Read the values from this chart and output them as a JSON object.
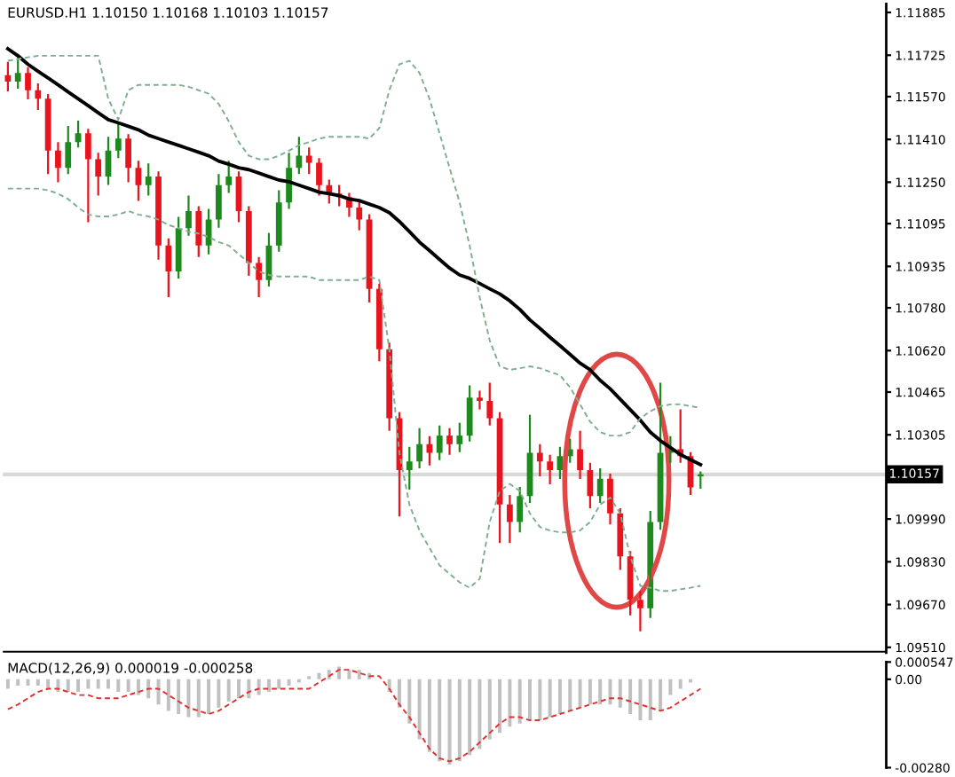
{
  "chart_data": [
    {
      "type": "candlestick",
      "title": "EURUSD.H1 1.10150 1.10168 1.10103 1.10157",
      "categories": [
        null,
        null,
        null,
        null,
        null,
        null,
        null,
        null,
        null,
        null,
        null,
        null,
        null,
        null,
        null,
        null,
        null,
        null,
        null,
        null,
        null,
        null,
        null,
        null,
        null,
        null,
        null,
        null,
        null,
        null,
        null,
        null,
        null,
        null,
        null,
        null,
        null,
        null,
        null,
        null,
        null,
        null,
        null,
        null,
        null,
        null,
        null,
        null,
        null,
        null,
        null,
        null,
        null,
        null,
        null,
        null,
        null,
        null,
        null,
        null,
        null,
        null,
        null,
        null,
        null,
        null,
        null,
        null,
        null,
        null,
        null,
        null,
        null,
        null,
        null,
        null,
        null,
        null,
        null,
        null,
        null,
        null,
        null,
        null,
        null,
        null,
        null,
        null
      ],
      "ohlc": [
        [
          1.1165,
          1.117,
          1.1159,
          1.11626
        ],
        [
          1.11626,
          1.1172,
          1.116,
          1.11659
        ],
        [
          1.11659,
          1.1168,
          1.1156,
          1.11594
        ],
        [
          1.11594,
          1.1162,
          1.1152,
          1.11562
        ],
        [
          1.11562,
          1.1158,
          1.1128,
          1.11368
        ],
        [
          1.11368,
          1.114,
          1.1125,
          1.11304
        ],
        [
          1.11304,
          1.1146,
          1.1128,
          1.114
        ],
        [
          1.114,
          1.1148,
          1.1138,
          1.11433
        ],
        [
          1.11433,
          1.1145,
          1.111,
          1.11336
        ],
        [
          1.11336,
          1.1136,
          1.112,
          1.11271
        ],
        [
          1.11271,
          1.1142,
          1.1124,
          1.11368
        ],
        [
          1.11368,
          1.1147,
          1.1134,
          1.11413
        ],
        [
          1.11413,
          1.1143,
          1.1125,
          1.11304
        ],
        [
          1.11304,
          1.1133,
          1.1118,
          1.11239
        ],
        [
          1.11239,
          1.1132,
          1.112,
          1.11271
        ],
        [
          1.11271,
          1.1129,
          1.1096,
          1.11013
        ],
        [
          1.11013,
          1.1104,
          1.1082,
          1.10916
        ],
        [
          1.10916,
          1.1112,
          1.1089,
          1.11078
        ],
        [
          1.11078,
          1.112,
          1.1105,
          1.11142
        ],
        [
          1.11142,
          1.1116,
          1.1097,
          1.11013
        ],
        [
          1.11013,
          1.1115,
          1.1098,
          1.1111
        ],
        [
          1.1111,
          1.1128,
          1.1108,
          1.11239
        ],
        [
          1.11239,
          1.1133,
          1.1121,
          1.11271
        ],
        [
          1.11271,
          1.1129,
          1.111,
          1.11142
        ],
        [
          1.11142,
          1.1116,
          1.109,
          1.10948
        ],
        [
          1.10948,
          1.1097,
          1.1082,
          1.10884
        ],
        [
          1.10884,
          1.1106,
          1.1086,
          1.11013
        ],
        [
          1.11013,
          1.1122,
          1.1099,
          1.11174
        ],
        [
          1.11174,
          1.1136,
          1.1115,
          1.11304
        ],
        [
          1.11304,
          1.1142,
          1.1128,
          1.11349
        ],
        [
          1.11349,
          1.1138,
          1.1128,
          1.11323
        ],
        [
          1.11323,
          1.1134,
          1.112,
          1.11239
        ],
        [
          1.11239,
          1.1126,
          1.1117,
          1.11207
        ],
        [
          1.11207,
          1.1124,
          1.1116,
          1.11194
        ],
        [
          1.11194,
          1.1121,
          1.1112,
          1.11155
        ],
        [
          1.11155,
          1.1118,
          1.1107,
          1.1111
        ],
        [
          1.1111,
          1.1113,
          1.108,
          1.10851
        ],
        [
          1.10851,
          1.1087,
          1.1058,
          1.10625
        ],
        [
          1.10625,
          1.1065,
          1.1032,
          1.10367
        ],
        [
          1.10367,
          1.1039,
          1.1,
          1.10173
        ],
        [
          1.10173,
          1.1026,
          1.101,
          1.10205
        ],
        [
          1.10205,
          1.1033,
          1.1018,
          1.1027
        ],
        [
          1.1027,
          1.103,
          1.1019,
          1.10238
        ],
        [
          1.10238,
          1.1034,
          1.1021,
          1.10302
        ],
        [
          1.10302,
          1.1033,
          1.1023,
          1.1027
        ],
        [
          1.1027,
          1.1035,
          1.1024,
          1.10302
        ],
        [
          1.10302,
          1.1049,
          1.1028,
          1.10444
        ],
        [
          1.10444,
          1.1047,
          1.104,
          1.10432
        ],
        [
          1.10432,
          1.105,
          1.1034,
          1.10367
        ],
        [
          1.10367,
          1.1039,
          1.099,
          1.10044
        ],
        [
          1.10044,
          1.1008,
          1.099,
          1.09979
        ],
        [
          1.09979,
          1.1011,
          1.0994,
          1.10076
        ],
        [
          1.10076,
          1.1038,
          1.1005,
          1.10238
        ],
        [
          1.10238,
          1.1027,
          1.1015,
          1.10205
        ],
        [
          1.10205,
          1.1023,
          1.1012,
          1.10173
        ],
        [
          1.10173,
          1.1026,
          1.1014,
          1.10225
        ],
        [
          1.10225,
          1.1029,
          1.102,
          1.10251
        ],
        [
          1.10251,
          1.1032,
          1.1014,
          1.10173
        ],
        [
          1.10173,
          1.102,
          1.1003,
          1.10076
        ],
        [
          1.10076,
          1.1018,
          1.1005,
          1.10141
        ],
        [
          1.10141,
          1.1016,
          1.0997,
          1.10011
        ],
        [
          1.10011,
          1.1003,
          1.098,
          1.0985
        ],
        [
          1.0985,
          1.0987,
          1.0963,
          1.09688
        ],
        [
          1.09688,
          1.0972,
          1.0957,
          1.09656
        ],
        [
          1.09656,
          1.1002,
          1.0962,
          1.09979
        ],
        [
          1.09979,
          1.105,
          1.0995,
          1.10238
        ],
        [
          1.10238,
          1.103,
          1.102,
          1.10251
        ],
        [
          1.10251,
          1.104,
          1.102,
          1.10225
        ],
        [
          1.10225,
          1.1024,
          1.1008,
          1.10108
        ],
        [
          1.1015,
          1.10168,
          1.10103,
          1.10157
        ],
        null,
        null,
        null,
        null,
        null,
        null,
        null,
        null,
        null,
        null,
        null,
        null,
        null,
        null,
        null,
        null,
        null,
        null
      ],
      "series": [
        {
          "type": "line",
          "color": "#000000",
          "line_style": "solid",
          "values": [
            1.11749,
            1.11723,
            1.11691,
            1.11665,
            1.1164,
            1.11614,
            1.11588,
            1.11562,
            1.11536,
            1.1151,
            1.11484,
            1.11472,
            1.11459,
            1.11446,
            1.11426,
            1.11413,
            1.114,
            1.11388,
            1.11375,
            1.11362,
            1.11349,
            1.11329,
            1.11317,
            1.11304,
            1.11297,
            1.11284,
            1.11271,
            1.11258,
            1.11252,
            1.11239,
            1.11226,
            1.11213,
            1.11207,
            1.112,
            1.11187,
            1.11181,
            1.11168,
            1.11155,
            1.11136,
            1.11103,
            1.11065,
            1.11026,
            1.10994,
            1.10961,
            1.10929,
            1.10903,
            1.1089,
            1.10871,
            1.10851,
            1.10832,
            1.10806,
            1.10774,
            1.10735,
            1.10703,
            1.1067,
            1.10638,
            1.10606,
            1.10573,
            1.10548,
            1.10509,
            1.10477,
            1.10438,
            1.10399,
            1.1036,
            1.10315,
            1.10283,
            1.10257,
            1.10231,
            1.10212,
            1.10193,
            null,
            null,
            null,
            null,
            null,
            null,
            null,
            null,
            null,
            null,
            null,
            null,
            null,
            null,
            null,
            null,
            null,
            null
          ]
        },
        {
          "type": "line",
          "color": "#7fae92",
          "line_style": "dashed",
          "values": [
            1.11704,
            1.11711,
            1.11717,
            1.11723,
            1.11723,
            1.11723,
            1.11723,
            1.11723,
            1.11723,
            1.11723,
            1.11562,
            1.11484,
            1.11594,
            1.11614,
            1.11614,
            1.11614,
            1.11614,
            1.11614,
            1.11607,
            1.11594,
            1.11581,
            1.11543,
            1.11478,
            1.114,
            1.11349,
            1.11336,
            1.11336,
            1.11349,
            1.11368,
            1.11388,
            1.114,
            1.11413,
            1.1142,
            1.1142,
            1.1142,
            1.1142,
            1.11413,
            1.11452,
            1.11594,
            1.11691,
            1.11704,
            1.11659,
            1.11562,
            1.11433,
            1.11304,
            1.11174,
            1.11013,
            1.10819,
            1.10658,
            1.10561,
            1.10548,
            1.10554,
            1.10561,
            1.10554,
            1.10541,
            1.10528,
            1.10483,
            1.10419,
            1.10354,
            1.10315,
            1.10302,
            1.10302,
            1.10315,
            1.10367,
            1.10393,
            1.10412,
            1.10419,
            1.10419,
            1.10412,
            1.10406,
            null,
            null,
            null,
            null,
            null,
            null,
            null,
            null,
            null,
            null,
            null,
            null,
            null,
            null,
            null,
            null,
            null,
            null
          ]
        },
        {
          "type": "line",
          "color": "#7fae92",
          "line_style": "dashed",
          "values": [
            1.11226,
            1.11226,
            1.11226,
            1.11226,
            1.1122,
            1.11207,
            1.11187,
            1.11155,
            1.11129,
            1.11122,
            1.11122,
            1.11129,
            1.11142,
            1.11129,
            1.11122,
            1.1111,
            1.1109,
            1.11078,
            1.11065,
            1.11058,
            1.11045,
            1.11026,
            1.11013,
            1.10981,
            1.10948,
            1.10916,
            1.10903,
            1.10897,
            1.10897,
            1.10897,
            1.10897,
            1.10884,
            1.10884,
            1.10884,
            1.10884,
            1.10884,
            1.10897,
            1.10884,
            1.10625,
            1.10238,
            1.10044,
            1.09947,
            1.09882,
            1.09817,
            1.09785,
            1.09753,
            1.09733,
            1.09766,
            1.09979,
            1.10095,
            1.10121,
            1.10095,
            1.10011,
            1.0996,
            1.09947,
            1.0994,
            1.0994,
            1.09947,
            1.09979,
            1.10044,
            1.1007,
            1.10011,
            1.0985,
            1.0974,
            1.09733,
            1.09721,
            1.09721,
            1.09727,
            1.09733,
            1.0974,
            null,
            null,
            null,
            null,
            null,
            null,
            null,
            null,
            null,
            null,
            null,
            null,
            null,
            null,
            null,
            null,
            null,
            null
          ]
        }
      ],
      "ylim": [
        1.0949,
        1.11917
      ],
      "yticks": [
        {
          "value": 1.11885,
          "label": "1.11885"
        },
        {
          "value": 1.11725,
          "label": "1.11725"
        },
        {
          "value": 1.1157,
          "label": "1.11570"
        },
        {
          "value": 1.1141,
          "label": "1.11410"
        },
        {
          "value": 1.1125,
          "label": "1.11250"
        },
        {
          "value": 1.11095,
          "label": "1.11095"
        },
        {
          "value": 1.10935,
          "label": "1.10935"
        },
        {
          "value": 1.1078,
          "label": "1.10780"
        },
        {
          "value": 1.1062,
          "label": "1.10620"
        },
        {
          "value": 1.10465,
          "label": "1.10465"
        },
        {
          "value": 1.10305,
          "label": "1.10305"
        },
        {
          "value": 1.0999,
          "label": "1.09990"
        },
        {
          "value": 1.0983,
          "label": "1.09830"
        },
        {
          "value": 1.0967,
          "label": "1.09670"
        },
        {
          "value": 1.0951,
          "label": "1.09510"
        }
      ],
      "ref_lines": [
        {
          "axis": "y",
          "value": 1.10157,
          "label": "1.10157",
          "color": "#d9d9d9"
        }
      ],
      "tick_labels": "y"
    },
    {
      "type": "bar",
      "title": "MACD(12,26,9) 0.000019 -0.000258",
      "categories": [
        null,
        null,
        null,
        null,
        null,
        null,
        null,
        null,
        null,
        null,
        null,
        null,
        null,
        null,
        null,
        null,
        null,
        null,
        null,
        null,
        null,
        null,
        null,
        null,
        null,
        null,
        null,
        null,
        null,
        null,
        null,
        null,
        null,
        null,
        null,
        null,
        null,
        null,
        null,
        null,
        null,
        null,
        null,
        null,
        null,
        null,
        null,
        null,
        null,
        null,
        null,
        null,
        null,
        null,
        null,
        null,
        null,
        null,
        null,
        null,
        null,
        null,
        null,
        null,
        null,
        null,
        null,
        null,
        null,
        null,
        null,
        null,
        null,
        null,
        null,
        null,
        null,
        null,
        null,
        null,
        null,
        null,
        null,
        null,
        null,
        null,
        null,
        null
      ],
      "series": [
        {
          "type": "bar",
          "color": "#c0c0c0",
          "values": [
            -0.0003,
            -0.0002,
            -0.0002,
            -0.0002,
            -0.0003,
            -0.0004,
            -0.0004,
            -0.0004,
            -0.0003,
            -0.0003,
            -0.0003,
            -0.0004,
            -0.0004,
            -0.0005,
            -0.0006,
            -0.0008,
            -0.001,
            -0.0011,
            -0.0012,
            -0.0012,
            -0.0011,
            -0.0009,
            -0.0007,
            -0.0006,
            -0.0006,
            -0.0005,
            -0.0004,
            -0.0003,
            -0.0002,
            -0.0001,
            0.0001,
            0.0002,
            0.0003,
            0.0004,
            0.0003,
            0.0003,
            0.0002,
            0.0,
            -0.0004,
            -0.0009,
            -0.0014,
            -0.0019,
            -0.0023,
            -0.0026,
            -0.0027,
            -0.0026,
            -0.0024,
            -0.0022,
            -0.0019,
            -0.0017,
            -0.0015,
            -0.0014,
            -0.0013,
            -0.0013,
            -0.0012,
            -0.0011,
            -0.001,
            -0.0009,
            -0.0008,
            -0.0008,
            -0.0008,
            -0.0009,
            -0.0011,
            -0.0013,
            -0.0013,
            -0.001,
            -0.0005,
            -0.0003,
            -0.0001,
            0.0,
            null,
            null,
            null,
            null,
            null,
            null,
            null,
            null,
            null,
            null,
            null,
            null,
            null,
            null,
            null,
            null,
            null,
            null
          ]
        },
        {
          "type": "line",
          "color": "#e03030",
          "line_style": "dashed",
          "values": [
            -0.00095,
            -0.0008,
            -0.0006,
            -0.0004,
            -0.0003,
            -0.0003,
            -0.0004,
            -0.0005,
            -0.0005,
            -0.0006,
            -0.0006,
            -0.0006,
            -0.0005,
            -0.0004,
            -0.0003,
            -0.0003,
            -0.0005,
            -0.0007,
            -0.0009,
            -0.001,
            -0.0011,
            -0.001,
            -0.0008,
            -0.0006,
            -0.0004,
            -0.0003,
            -0.0003,
            -0.0003,
            -0.0003,
            -0.0003,
            -0.0003,
            -0.0001,
            0.0001,
            0.0003,
            0.0003,
            0.0002,
            0.0001,
            0.0001,
            -0.0003,
            -0.0008,
            -0.0012,
            -0.0017,
            -0.0022,
            -0.0025,
            -0.0026,
            -0.0025,
            -0.0023,
            -0.002,
            -0.0017,
            -0.0014,
            -0.0012,
            -0.0012,
            -0.0013,
            -0.0013,
            -0.0012,
            -0.0011,
            -0.001,
            -0.0009,
            -0.0008,
            -0.0007,
            -0.0006,
            -0.0006,
            -0.0007,
            -0.0008,
            -0.0009,
            -0.001,
            -0.0009,
            -0.0007,
            -0.0005,
            -0.0003,
            null,
            null,
            null,
            null,
            null,
            null,
            null,
            null,
            null,
            null,
            null,
            null,
            null,
            null,
            null,
            null,
            null,
            null
          ]
        }
      ],
      "ylim": [
        -0.0028,
        0.000547
      ],
      "yticks": [
        {
          "value": 0.000547,
          "label": "0.000547"
        },
        {
          "value": 0,
          "label": "0.00"
        },
        {
          "value": -0.0028,
          "label": "-0.00280"
        }
      ],
      "tick_labels": "y"
    }
  ]
}
